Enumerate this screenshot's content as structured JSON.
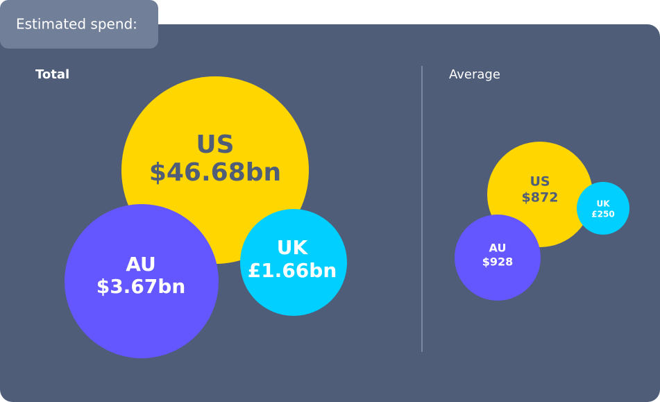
{
  "header": {
    "title": "Estimated spend:"
  },
  "panels": [
    {
      "title": "Total",
      "bubbles": [
        {
          "label": "US",
          "value": "$46.68bn"
        },
        {
          "label": "AU",
          "value": "$3.67bn"
        },
        {
          "label": "UK",
          "value": "£1.66bn"
        }
      ]
    },
    {
      "title": "Average",
      "bubbles": [
        {
          "label": "US",
          "value": "$872"
        },
        {
          "label": "AU",
          "value": "$928"
        },
        {
          "label": "UK",
          "value": "£250"
        }
      ]
    }
  ]
}
